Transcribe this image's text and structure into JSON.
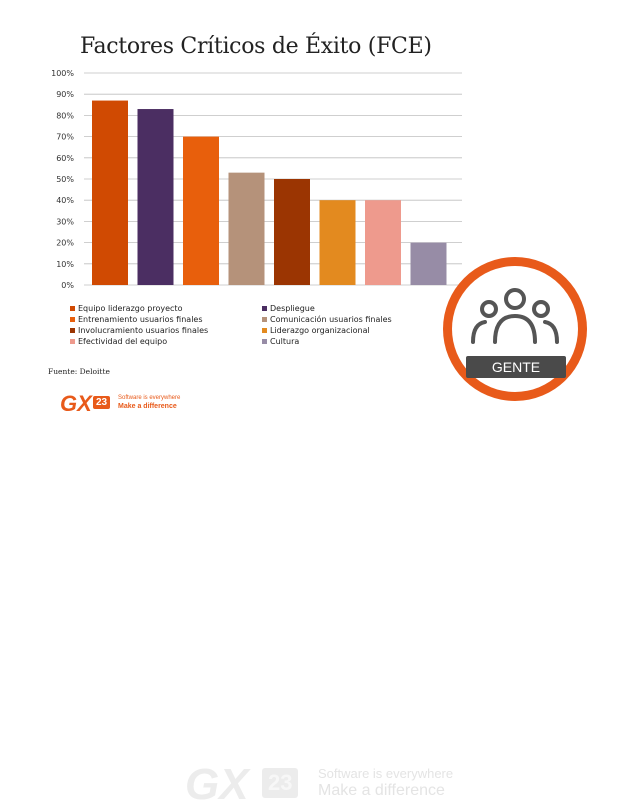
{
  "slide": {
    "title": "Factores Críticos de Éxito (FCE)",
    "source": "Fuente: Deloitte",
    "badge_label": "GENTE",
    "brand_color": "#e85a1a",
    "logo": {
      "gx": "GX",
      "num": "23",
      "tagline1": "Software is everywhere",
      "tagline2": "Make a difference"
    }
  },
  "chart_data": {
    "type": "bar",
    "title": "Factores Críticos de Éxito (FCE)",
    "categories": [
      "Equipo liderazgo proyecto",
      "Despliegue",
      "Entrenamiento usuarios finales",
      "Comunicación usuarios finales",
      "Involucramiento usuarios finales",
      "Liderazgo organizacional",
      "Efectividad del equipo",
      "Cultura"
    ],
    "values": [
      87,
      83,
      70,
      53,
      50,
      40,
      40,
      20
    ],
    "colors": [
      "#d04a02",
      "#4b2e62",
      "#e85f0c",
      "#b5927a",
      "#9b3502",
      "#e38a1f",
      "#ee9a8d",
      "#978ca6"
    ],
    "ylim": [
      0,
      100
    ],
    "yticks": [
      "0%",
      "10%",
      "20%",
      "30%",
      "40%",
      "50%",
      "60%",
      "70%",
      "80%",
      "90%",
      "100%"
    ],
    "grid": true,
    "legend_position": "bottom",
    "legend": [
      "Equipo liderazgo proyecto",
      "Despliegue",
      "Entrenamiento usuarios finales",
      "Comunicación usuarios finales",
      "Involucramiento usuarios finales",
      "Liderazgo organizacional",
      "Efectividad del equipo",
      "Cultura"
    ]
  }
}
